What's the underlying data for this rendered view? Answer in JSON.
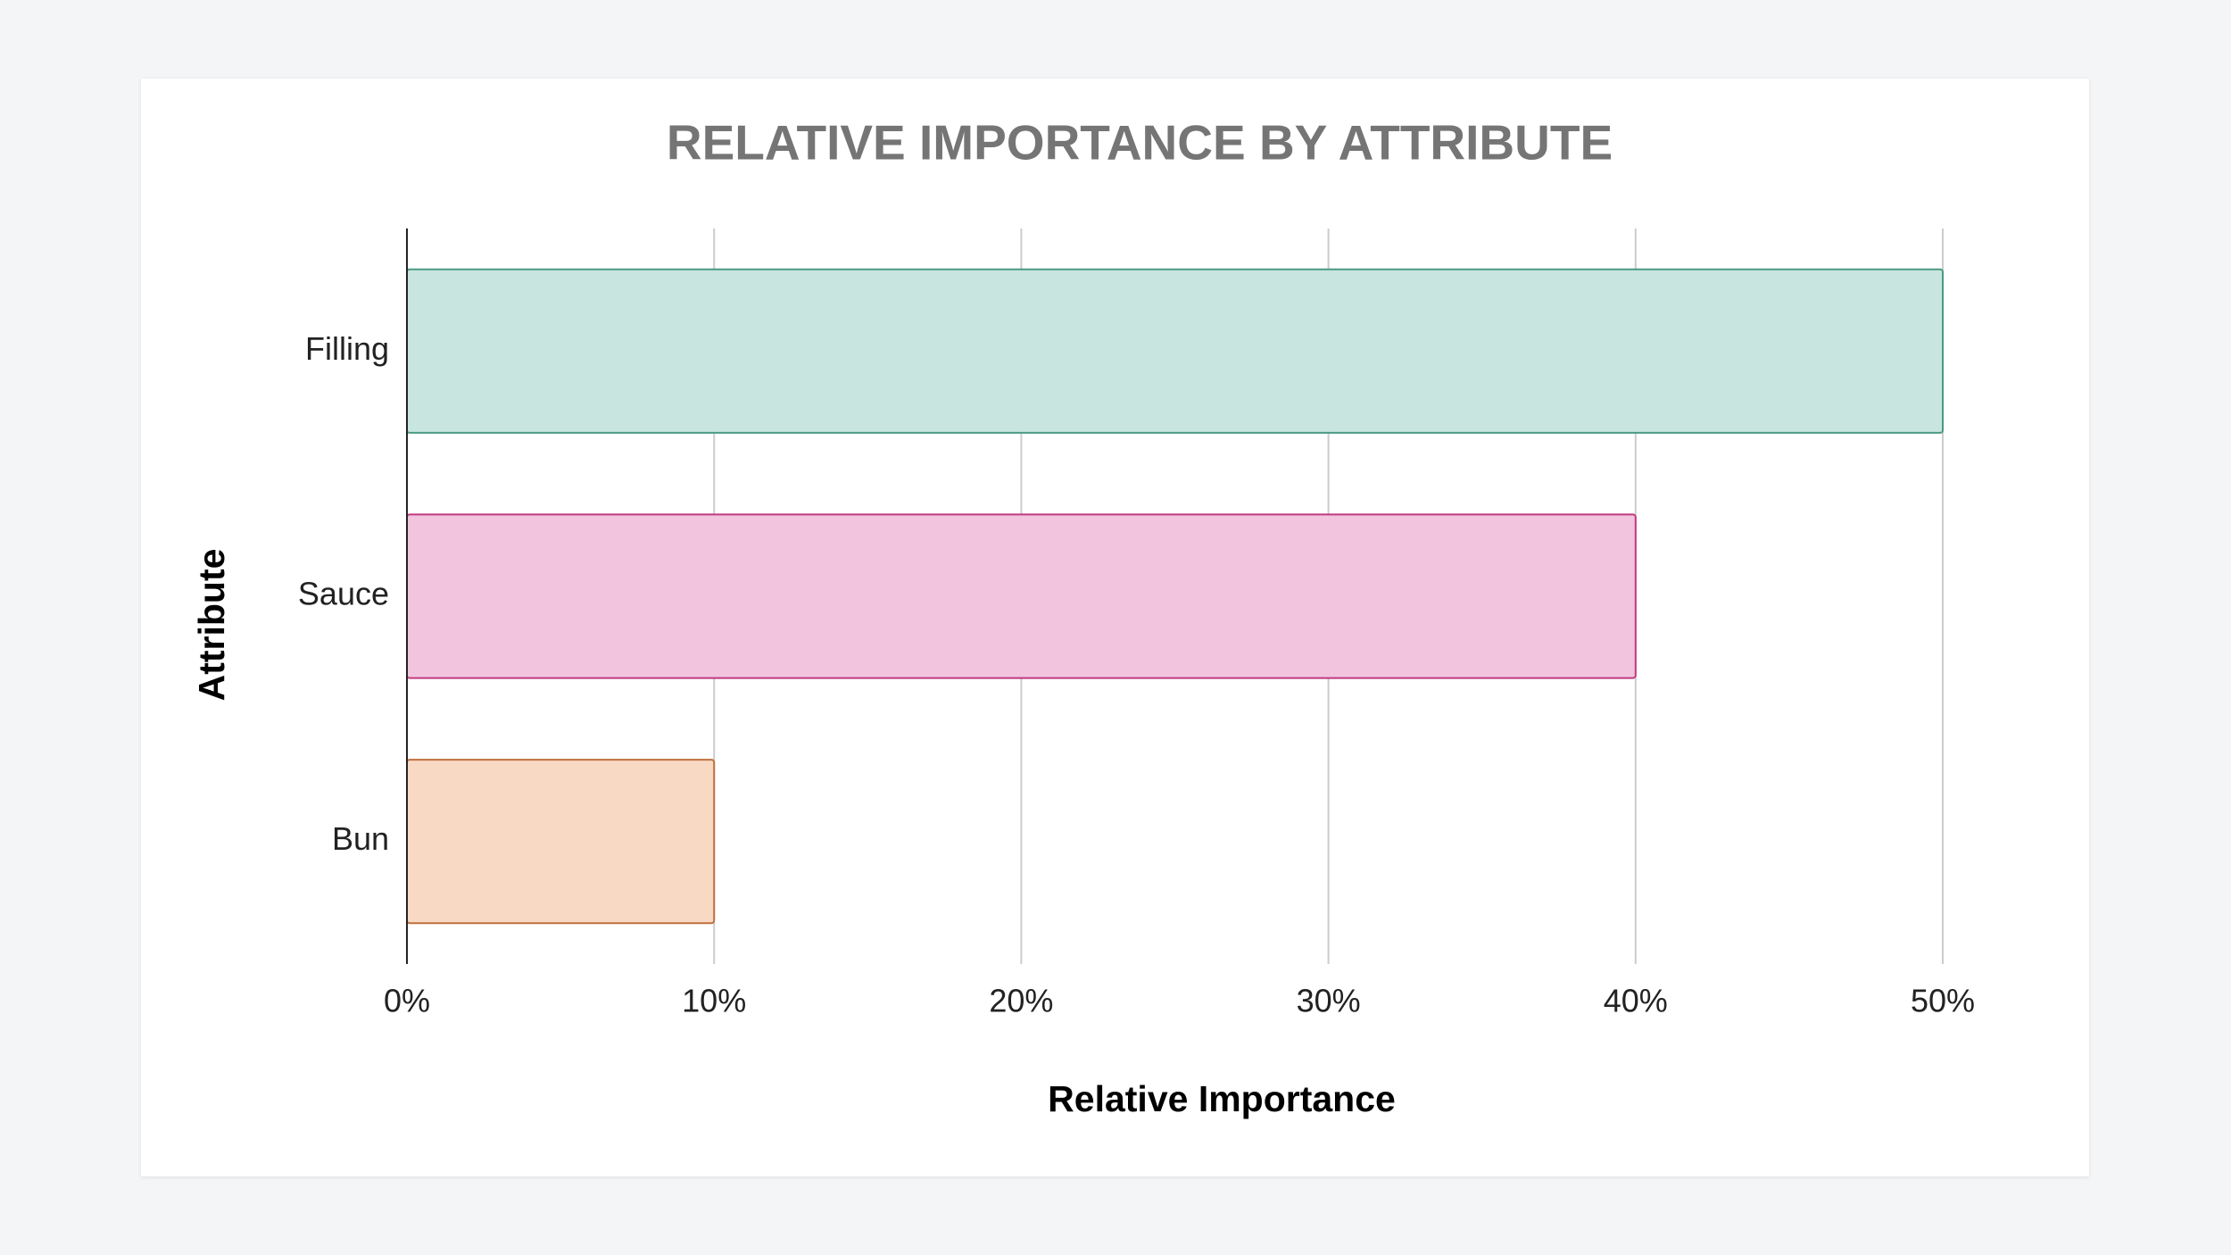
{
  "chart_data": {
    "type": "bar",
    "orientation": "horizontal",
    "title": "RELATIVE IMPORTANCE BY ATTRIBUTE",
    "xlabel": "Relative Importance",
    "ylabel": "Attribute",
    "categories": [
      "Filling",
      "Sauce",
      "Bun"
    ],
    "values": [
      50,
      40,
      10
    ],
    "unit": "%",
    "xlim": [
      0,
      50
    ],
    "xticks": [
      "0%",
      "10%",
      "20%",
      "30%",
      "40%",
      "50%"
    ],
    "grid": true,
    "legend": "none",
    "colors": [
      {
        "fill": "#c8e5df",
        "stroke": "#4a9a84"
      },
      {
        "fill": "#f2c4de",
        "stroke": "#c0397f"
      },
      {
        "fill": "#f8d9c4",
        "stroke": "#c0703c"
      }
    ]
  }
}
